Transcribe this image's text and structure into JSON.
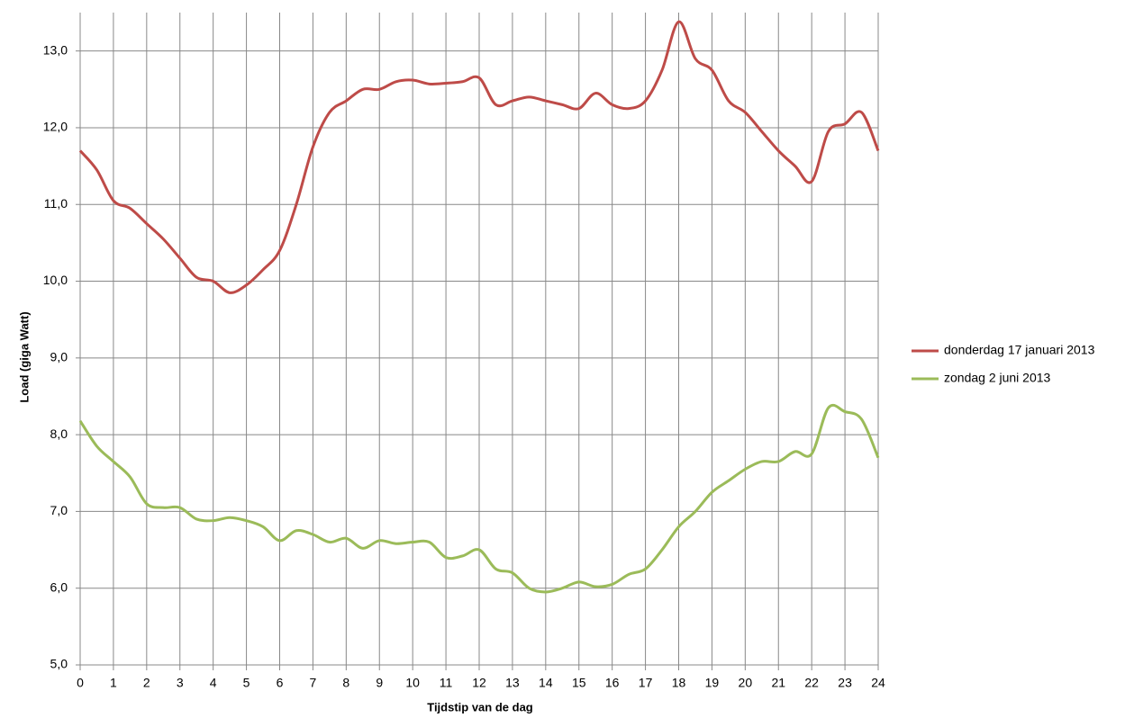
{
  "chart_data": {
    "type": "line",
    "x_label": "Tijdstip  van de dag",
    "y_label": "Load (giga Watt)",
    "x": [
      0,
      0.5,
      1,
      1.5,
      2,
      2.5,
      3,
      3.5,
      4,
      4.5,
      5,
      5.5,
      6,
      6.5,
      7,
      7.5,
      8,
      8.5,
      9,
      9.5,
      10,
      10.5,
      11,
      11.5,
      12,
      12.5,
      13,
      13.5,
      14,
      14.5,
      15,
      15.5,
      16,
      16.5,
      17,
      17.5,
      18,
      18.5,
      19,
      19.5,
      20,
      20.5,
      21,
      21.5,
      22,
      22.5,
      23,
      23.5,
      24
    ],
    "series": [
      {
        "name": "donderdag 17 januari 2013",
        "color": "#be4b48",
        "values": [
          11.7,
          11.45,
          11.05,
          10.95,
          10.75,
          10.55,
          10.3,
          10.05,
          10.0,
          9.85,
          9.95,
          10.15,
          10.4,
          11.0,
          11.75,
          12.2,
          12.35,
          12.5,
          12.5,
          12.6,
          12.62,
          12.57,
          12.58,
          12.6,
          12.65,
          12.3,
          12.35,
          12.4,
          12.35,
          12.3,
          12.25,
          12.45,
          12.3,
          12.25,
          12.35,
          12.75,
          13.38,
          12.9,
          12.75,
          12.35,
          12.2,
          11.95,
          11.7,
          11.5,
          11.3,
          11.95,
          12.05,
          12.2,
          11.7
        ]
      },
      {
        "name": "zondag 2 juni 2013",
        "color": "#9bbb59",
        "values": [
          8.18,
          7.85,
          7.65,
          7.45,
          7.1,
          7.05,
          7.05,
          6.9,
          6.88,
          6.92,
          6.88,
          6.8,
          6.62,
          6.75,
          6.7,
          6.6,
          6.65,
          6.52,
          6.62,
          6.58,
          6.6,
          6.6,
          6.4,
          6.42,
          6.5,
          6.25,
          6.2,
          6.0,
          5.95,
          6.0,
          6.08,
          6.02,
          6.05,
          6.18,
          6.25,
          6.5,
          6.8,
          7.0,
          7.25,
          7.4,
          7.55,
          7.65,
          7.65,
          7.78,
          7.75,
          8.35,
          8.3,
          8.2,
          7.7
        ]
      }
    ],
    "xlim": [
      0,
      24
    ],
    "xticks": [
      0,
      1,
      2,
      3,
      4,
      5,
      6,
      7,
      8,
      9,
      10,
      11,
      12,
      13,
      14,
      15,
      16,
      17,
      18,
      19,
      20,
      21,
      22,
      23,
      24
    ],
    "ylim": [
      5,
      13.5
    ],
    "yticks": [
      {
        "value": 5,
        "label": "5,0"
      },
      {
        "value": 6,
        "label": "6,0"
      },
      {
        "value": 7,
        "label": "7,0"
      },
      {
        "value": 8,
        "label": "8,0"
      },
      {
        "value": 9,
        "label": "9,0"
      },
      {
        "value": 10,
        "label": "10,0"
      },
      {
        "value": 11,
        "label": "11,0"
      },
      {
        "value": 12,
        "label": "12,0"
      },
      {
        "value": 13,
        "label": "13,0"
      }
    ],
    "grid": true,
    "legend": "right"
  }
}
